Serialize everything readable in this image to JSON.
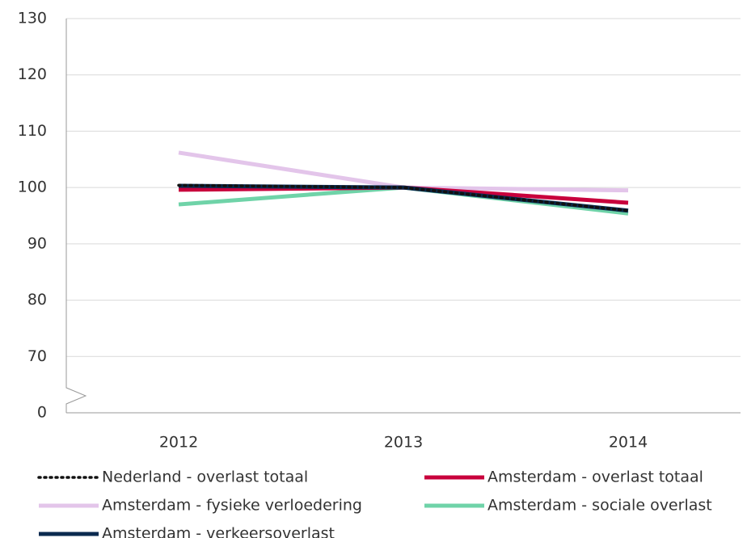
{
  "chart_data": {
    "type": "line",
    "categories": [
      "2012",
      "2013",
      "2014"
    ],
    "series": [
      {
        "name": "Nederland - overlast totaal",
        "color": "#111111",
        "style": "dotted",
        "values": [
          100.4,
          100,
          95.9
        ]
      },
      {
        "name": "Amsterdam - overlast totaal",
        "color": "#c8003c",
        "style": "solid",
        "values": [
          99.6,
          100,
          97.3
        ]
      },
      {
        "name": "Amsterdam - fysieke verloedering",
        "color": "#e3c5ea",
        "style": "solid",
        "values": [
          106.2,
          100,
          99.5
        ]
      },
      {
        "name": "Amsterdam - sociale overlast",
        "color": "#6fd3a8",
        "style": "solid",
        "values": [
          97,
          100,
          95.4
        ]
      },
      {
        "name": "Amsterdam - verkeersoverlast",
        "color": "#0a2a4f",
        "style": "solid",
        "values": [
          100.3,
          100,
          95.9
        ]
      }
    ],
    "ylim": [
      0,
      130
    ],
    "yticks": [
      0,
      70,
      80,
      90,
      100,
      110,
      120,
      130
    ],
    "axis_break": true,
    "grid": true
  }
}
